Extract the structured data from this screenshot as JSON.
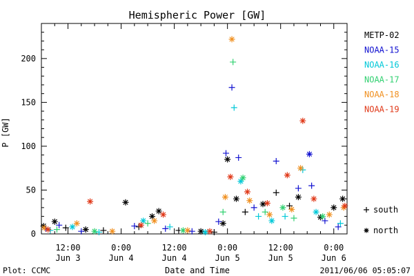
{
  "chart_data": {
    "type": "scatter",
    "title": "Hemispheric Power [GW]",
    "xlabel": "Date and Time",
    "ylabel": "P [GW]",
    "ylim": [
      0,
      240
    ],
    "yticks": [
      0,
      50,
      100,
      150,
      200
    ],
    "xlim": [
      "2011-06-03 06:00",
      "2011-06-06 03:00"
    ],
    "xticks": [
      {
        "t": "2011-06-03 12:00",
        "line1": "12:00",
        "line2": "Jun 3"
      },
      {
        "t": "2011-06-04 00:00",
        "line1": "0:00",
        "line2": "Jun 4"
      },
      {
        "t": "2011-06-04 12:00",
        "line1": "12:00",
        "line2": "Jun 4"
      },
      {
        "t": "2011-06-05 00:00",
        "line1": "0:00",
        "line2": "Jun 5"
      },
      {
        "t": "2011-06-05 12:00",
        "line1": "12:00",
        "line2": "Jun 5"
      },
      {
        "t": "2011-06-06 00:00",
        "line1": "0:00",
        "line2": "Jun 6"
      }
    ],
    "legend_position": "right",
    "series": [
      {
        "name": "METP-02",
        "color": "#000000",
        "points": [
          {
            "t": "2011-06-03 06:30",
            "y": 9,
            "h": "north"
          },
          {
            "t": "2011-06-03 09:00",
            "y": 14,
            "h": "north"
          },
          {
            "t": "2011-06-03 11:30",
            "y": 7,
            "h": "south"
          },
          {
            "t": "2011-06-03 16:00",
            "y": 5,
            "h": "north"
          },
          {
            "t": "2011-06-03 20:00",
            "y": 4,
            "h": "south"
          },
          {
            "t": "2011-06-04 01:00",
            "y": 36,
            "h": "north"
          },
          {
            "t": "2011-06-04 04:00",
            "y": 8,
            "h": "south"
          },
          {
            "t": "2011-06-04 07:00",
            "y": 20,
            "h": "north"
          },
          {
            "t": "2011-06-04 08:30",
            "y": 26,
            "h": "north"
          },
          {
            "t": "2011-06-04 13:00",
            "y": 4,
            "h": "south"
          },
          {
            "t": "2011-06-04 18:00",
            "y": 3,
            "h": "north"
          },
          {
            "t": "2011-06-04 21:00",
            "y": 2,
            "h": "south"
          },
          {
            "t": "2011-06-04 23:00",
            "y": 12,
            "h": "north"
          },
          {
            "t": "2011-06-05 00:00",
            "y": 85,
            "h": "north"
          },
          {
            "t": "2011-06-05 02:00",
            "y": 40,
            "h": "north"
          },
          {
            "t": "2011-06-05 04:00",
            "y": 25,
            "h": "south"
          },
          {
            "t": "2011-06-05 08:00",
            "y": 34,
            "h": "north"
          },
          {
            "t": "2011-06-05 11:00",
            "y": 47,
            "h": "south"
          },
          {
            "t": "2011-06-05 14:00",
            "y": 32,
            "h": "south"
          },
          {
            "t": "2011-06-05 16:00",
            "y": 42,
            "h": "north"
          },
          {
            "t": "2011-06-05 21:00",
            "y": 19,
            "h": "north"
          },
          {
            "t": "2011-06-06 00:00",
            "y": 30,
            "h": "north"
          },
          {
            "t": "2011-06-06 02:00",
            "y": 40,
            "h": "north"
          }
        ]
      },
      {
        "name": "NOAA-15",
        "color": "#1010d0",
        "points": [
          {
            "t": "2011-06-03 07:00",
            "y": 6,
            "h": "south"
          },
          {
            "t": "2011-06-03 10:00",
            "y": 10,
            "h": "south"
          },
          {
            "t": "2011-06-03 15:00",
            "y": 3,
            "h": "south"
          },
          {
            "t": "2011-06-04 03:00",
            "y": 9,
            "h": "south"
          },
          {
            "t": "2011-06-04 10:00",
            "y": 6,
            "h": "south"
          },
          {
            "t": "2011-06-04 16:00",
            "y": 3,
            "h": "south"
          },
          {
            "t": "2011-06-04 22:00",
            "y": 14,
            "h": "south"
          },
          {
            "t": "2011-06-04 23:40",
            "y": 92,
            "h": "south"
          },
          {
            "t": "2011-06-05 01:00",
            "y": 167,
            "h": "south"
          },
          {
            "t": "2011-06-05 02:30",
            "y": 87,
            "h": "south"
          },
          {
            "t": "2011-06-05 06:00",
            "y": 30,
            "h": "south"
          },
          {
            "t": "2011-06-05 11:00",
            "y": 83,
            "h": "south"
          },
          {
            "t": "2011-06-05 16:00",
            "y": 52,
            "h": "south"
          },
          {
            "t": "2011-06-05 18:30",
            "y": 91,
            "h": "north"
          },
          {
            "t": "2011-06-05 19:00",
            "y": 55,
            "h": "south"
          },
          {
            "t": "2011-06-05 22:00",
            "y": 15,
            "h": "south"
          },
          {
            "t": "2011-06-06 01:00",
            "y": 8,
            "h": "south"
          }
        ]
      },
      {
        "name": "NOAA-16",
        "color": "#00c8d8",
        "points": [
          {
            "t": "2011-06-03 08:00",
            "y": 4,
            "h": "south"
          },
          {
            "t": "2011-06-03 13:00",
            "y": 8,
            "h": "north"
          },
          {
            "t": "2011-06-03 19:00",
            "y": 2,
            "h": "south"
          },
          {
            "t": "2011-06-04 05:00",
            "y": 15,
            "h": "north"
          },
          {
            "t": "2011-06-04 11:00",
            "y": 8,
            "h": "south"
          },
          {
            "t": "2011-06-04 19:00",
            "y": 2,
            "h": "north"
          },
          {
            "t": "2011-06-05 01:30",
            "y": 144,
            "h": "south"
          },
          {
            "t": "2011-06-05 03:00",
            "y": 60,
            "h": "north"
          },
          {
            "t": "2011-06-05 07:00",
            "y": 20,
            "h": "south"
          },
          {
            "t": "2011-06-05 10:00",
            "y": 15,
            "h": "north"
          },
          {
            "t": "2011-06-05 13:00",
            "y": 20,
            "h": "south"
          },
          {
            "t": "2011-06-05 17:00",
            "y": 73,
            "h": "south"
          },
          {
            "t": "2011-06-05 20:00",
            "y": 25,
            "h": "north"
          },
          {
            "t": "2011-06-06 01:30",
            "y": 12,
            "h": "south"
          }
        ]
      },
      {
        "name": "NOAA-17",
        "color": "#30d070",
        "points": [
          {
            "t": "2011-06-03 09:30",
            "y": 5,
            "h": "south"
          },
          {
            "t": "2011-06-03 18:00",
            "y": 3,
            "h": "north"
          },
          {
            "t": "2011-06-04 06:00",
            "y": 12,
            "h": "south"
          },
          {
            "t": "2011-06-04 14:00",
            "y": 4,
            "h": "north"
          },
          {
            "t": "2011-06-04 23:00",
            "y": 25,
            "h": "south"
          },
          {
            "t": "2011-06-05 01:15",
            "y": 196,
            "h": "south"
          },
          {
            "t": "2011-06-05 03:30",
            "y": 64,
            "h": "north"
          },
          {
            "t": "2011-06-05 08:30",
            "y": 25,
            "h": "south"
          },
          {
            "t": "2011-06-05 12:30",
            "y": 30,
            "h": "north"
          },
          {
            "t": "2011-06-05 15:00",
            "y": 18,
            "h": "south"
          },
          {
            "t": "2011-06-05 21:30",
            "y": 20,
            "h": "north"
          }
        ]
      },
      {
        "name": "NOAA-18",
        "color": "#f09020",
        "points": [
          {
            "t": "2011-06-03 06:40",
            "y": 7,
            "h": "north"
          },
          {
            "t": "2011-06-03 14:00",
            "y": 12,
            "h": "north"
          },
          {
            "t": "2011-06-03 22:00",
            "y": 3,
            "h": "north"
          },
          {
            "t": "2011-06-04 07:30",
            "y": 15,
            "h": "north"
          },
          {
            "t": "2011-06-04 15:00",
            "y": 4,
            "h": "north"
          },
          {
            "t": "2011-06-04 23:30",
            "y": 42,
            "h": "north"
          },
          {
            "t": "2011-06-05 01:00",
            "y": 222,
            "h": "north"
          },
          {
            "t": "2011-06-05 05:00",
            "y": 38,
            "h": "north"
          },
          {
            "t": "2011-06-05 09:30",
            "y": 22,
            "h": "north"
          },
          {
            "t": "2011-06-05 14:30",
            "y": 28,
            "h": "north"
          },
          {
            "t": "2011-06-05 16:30",
            "y": 75,
            "h": "north"
          },
          {
            "t": "2011-06-05 23:00",
            "y": 22,
            "h": "north"
          },
          {
            "t": "2011-06-06 02:15",
            "y": 30,
            "h": "north"
          }
        ]
      },
      {
        "name": "NOAA-19",
        "color": "#e03818",
        "points": [
          {
            "t": "2011-06-03 07:30",
            "y": 5,
            "h": "north"
          },
          {
            "t": "2011-06-03 17:00",
            "y": 37,
            "h": "north"
          },
          {
            "t": "2011-06-04 04:30",
            "y": 10,
            "h": "north"
          },
          {
            "t": "2011-06-04 09:30",
            "y": 22,
            "h": "north"
          },
          {
            "t": "2011-06-04 20:00",
            "y": 3,
            "h": "north"
          },
          {
            "t": "2011-06-05 00:40",
            "y": 65,
            "h": "north"
          },
          {
            "t": "2011-06-05 04:30",
            "y": 48,
            "h": "north"
          },
          {
            "t": "2011-06-05 09:00",
            "y": 35,
            "h": "north"
          },
          {
            "t": "2011-06-05 13:30",
            "y": 67,
            "h": "north"
          },
          {
            "t": "2011-06-05 17:00",
            "y": 129,
            "h": "north"
          },
          {
            "t": "2011-06-05 19:30",
            "y": 40,
            "h": "north"
          },
          {
            "t": "2011-06-06 02:30",
            "y": 32,
            "h": "north"
          }
        ]
      }
    ],
    "marker_legend": [
      {
        "symbol": "+",
        "label": "south"
      },
      {
        "symbol": "*",
        "label": "north"
      }
    ]
  },
  "footer": {
    "left": "Plot: CCMC",
    "right": "2011/06/06 05:05:07"
  }
}
